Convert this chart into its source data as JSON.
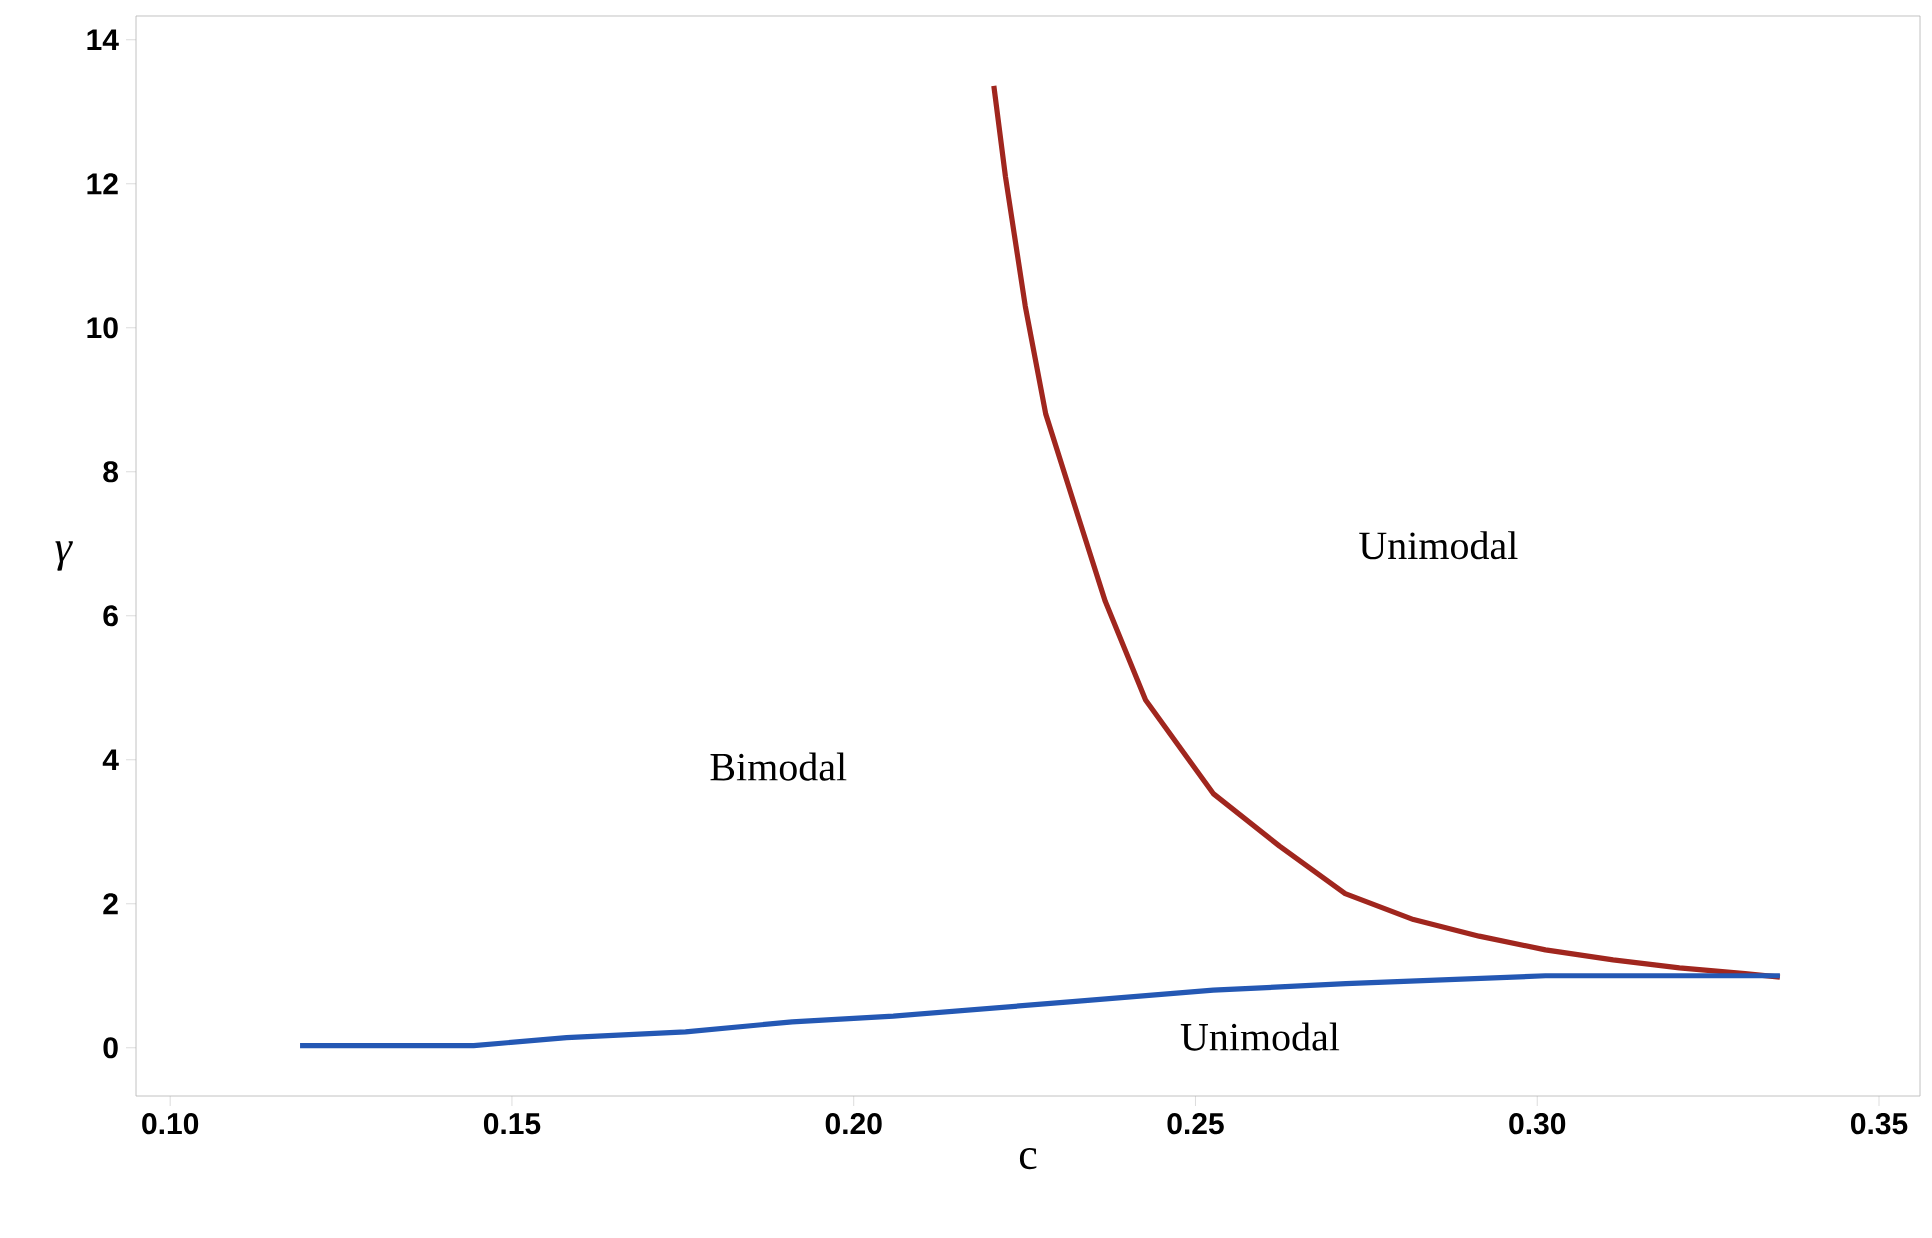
{
  "chart_data": {
    "type": "line",
    "xlabel": "c",
    "ylabel": "γ",
    "xlim": [
      0.095,
      0.356
    ],
    "ylim": [
      -0.67,
      14.33
    ],
    "xticks": [
      {
        "value": 0.1,
        "label": "0.10"
      },
      {
        "value": 0.15,
        "label": "0.15"
      },
      {
        "value": 0.2,
        "label": "0.20"
      },
      {
        "value": 0.25,
        "label": "0.25"
      },
      {
        "value": 0.3,
        "label": "0.30"
      },
      {
        "value": 0.35,
        "label": "0.35"
      }
    ],
    "yticks": [
      0,
      2,
      4,
      6,
      8,
      10,
      12,
      14
    ],
    "grid": false,
    "legend": false,
    "marker": "none",
    "line_style": "solid",
    "series": [
      {
        "color": "#a0261e",
        "x": [
          0.2205,
          0.2222,
          0.2251,
          0.2281,
          0.233,
          0.2368,
          0.2427,
          0.2526,
          0.2623,
          0.2719,
          0.2819,
          0.2915,
          0.3012,
          0.3111,
          0.3208,
          0.3304,
          0.3355
        ],
        "values": [
          13.36,
          12.1,
          10.3,
          8.8,
          7.33,
          6.2,
          4.83,
          3.53,
          2.8,
          2.14,
          1.78,
          1.55,
          1.36,
          1.22,
          1.11,
          1.03,
          0.98
        ]
      },
      {
        "color": "#2458b4",
        "x": [
          0.119,
          0.1444,
          0.158,
          0.1754,
          0.191,
          0.2058,
          0.232,
          0.2526,
          0.272,
          0.3012,
          0.33,
          0.3355
        ],
        "values": [
          0.03,
          0.03,
          0.14,
          0.22,
          0.36,
          0.44,
          0.64,
          0.8,
          0.89,
          1.0,
          1.0,
          1.0
        ]
      }
    ],
    "annotations": [
      "Bimodal",
      "Unimodal",
      "Unimodal"
    ]
  }
}
